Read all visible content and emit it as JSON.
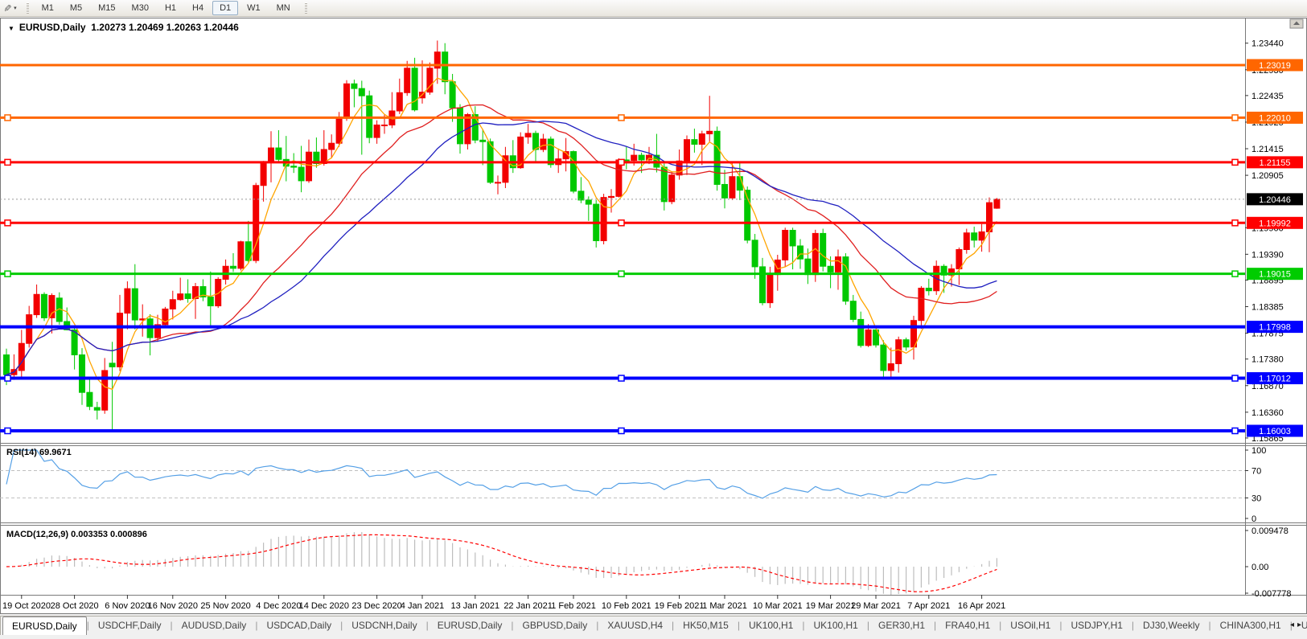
{
  "toolbar": {
    "draw_tool_icon": "✎",
    "dropdown_icon": "▾",
    "timeframes": [
      "M1",
      "M5",
      "M15",
      "M30",
      "H1",
      "H4",
      "D1",
      "W1",
      "MN"
    ],
    "active_timeframe": "D1"
  },
  "chart": {
    "dropdown_icon": "▼",
    "title": "EURUSD,Daily",
    "quote": "1.20273 1.20469 1.20263 1.20446"
  },
  "rsi_panel": {
    "label": "RSI(14) 69.9671"
  },
  "macd_panel": {
    "label": "MACD(12,26,9) 0.003353 0.000896"
  },
  "chart_data": {
    "type": "candlestick",
    "symbol": "EURUSD",
    "timeframe": "Daily",
    "colors": {
      "bull": "#F20000",
      "bear": "#00C800",
      "ma_fast": "#FFA500",
      "ma_mid": "#E02020",
      "ma_slow": "#2020C0",
      "rsi": "#55A0E6",
      "macd_hist": "#BDBDBD",
      "macd_signal": "#FF0000",
      "current_badge": "#000000",
      "axis_text": "#000000"
    },
    "ma_periods": {
      "fast": 5,
      "mid": 20,
      "slow": 30
    },
    "current_price": {
      "value": 1.20446,
      "label": "1.20446"
    },
    "price_axis_ticks": [
      "1.23440",
      "1.22930",
      "1.22435",
      "1.21925",
      "1.21415",
      "1.20905",
      "1.19900",
      "1.19390",
      "1.18895",
      "1.18385",
      "1.17875",
      "1.17380",
      "1.16870",
      "1.16360",
      "1.15865"
    ],
    "hlines": [
      {
        "price": 1.23019,
        "label": "1.23019",
        "color": "#FF6600",
        "width": 3,
        "handles": false
      },
      {
        "price": 1.2201,
        "label": "1.22010",
        "color": "#FF6600",
        "width": 3,
        "handles": true
      },
      {
        "price": 1.21155,
        "label": "1.21155",
        "color": "#FF0000",
        "width": 3,
        "handles": true
      },
      {
        "price": 1.19992,
        "label": "1.19992",
        "color": "#FF0000",
        "width": 3,
        "handles": true
      },
      {
        "price": 1.19015,
        "label": "1.19015",
        "color": "#00CC00",
        "width": 3,
        "handles": true
      },
      {
        "price": 1.17998,
        "label": "1.17998",
        "color": "#0000FF",
        "width": 4,
        "handles": false
      },
      {
        "price": 1.17012,
        "label": "1.17012",
        "color": "#0000FF",
        "width": 4,
        "handles": true
      },
      {
        "price": 1.16003,
        "label": "1.16003",
        "color": "#0000FF",
        "width": 4,
        "handles": true
      }
    ],
    "rsi_axis_ticks": [
      "100",
      "70",
      "30",
      "0"
    ],
    "rsi_levels": [
      70,
      30
    ],
    "macd_axis_ticks": [
      "0.009478",
      "0.00",
      "-0.007778"
    ],
    "date_labels": [
      [
        "19 Oct 2020",
        2
      ],
      [
        "28 Oct 2020",
        9
      ],
      [
        "6 Nov 2020",
        16
      ],
      [
        "16 Nov 2020",
        22
      ],
      [
        "25 Nov 2020",
        29
      ],
      [
        "4 Dec 2020",
        36
      ],
      [
        "14 Dec 2020",
        42
      ],
      [
        "23 Dec 2020",
        49
      ],
      [
        "4 Jan 2021",
        55
      ],
      [
        "13 Jan 2021",
        62
      ],
      [
        "22 Jan 2021",
        69
      ],
      [
        "1 Feb 2021",
        75
      ],
      [
        "10 Feb 2021",
        82
      ],
      [
        "19 Feb 2021",
        89
      ],
      [
        "1 Mar 2021",
        95
      ],
      [
        "10 Mar 2021",
        102
      ],
      [
        "19 Mar 2021",
        109
      ],
      [
        "29 Mar 2021",
        115
      ],
      [
        "7 Apr 2021",
        122
      ],
      [
        "16 Apr 2021",
        129
      ]
    ],
    "ohlc": [
      [
        1.1746,
        1.1758,
        1.1688,
        1.1708
      ],
      [
        1.1708,
        1.1747,
        1.1698,
        1.1718
      ],
      [
        1.1716,
        1.1794,
        1.1703,
        1.1768
      ],
      [
        1.1768,
        1.184,
        1.176,
        1.1823
      ],
      [
        1.1823,
        1.1881,
        1.1817,
        1.1862
      ],
      [
        1.1862,
        1.1866,
        1.1811,
        1.1817
      ],
      [
        1.1817,
        1.1864,
        1.1787,
        1.186
      ],
      [
        1.1855,
        1.1866,
        1.1804,
        1.181
      ],
      [
        1.181,
        1.1837,
        1.1793,
        1.1794
      ],
      [
        1.1794,
        1.18,
        1.1718,
        1.1746
      ],
      [
        1.1746,
        1.1759,
        1.165,
        1.1674
      ],
      [
        1.1674,
        1.1704,
        1.164,
        1.1647
      ],
      [
        1.1645,
        1.1656,
        1.1622,
        1.164
      ],
      [
        1.164,
        1.174,
        1.1633,
        1.1716
      ],
      [
        1.173,
        1.1771,
        1.1603,
        1.1723
      ],
      [
        1.1723,
        1.1861,
        1.1715,
        1.1826
      ],
      [
        1.1826,
        1.1887,
        1.1795,
        1.1873
      ],
      [
        1.1873,
        1.192,
        1.1795,
        1.1813
      ],
      [
        1.1813,
        1.1843,
        1.1781,
        1.1815
      ],
      [
        1.1815,
        1.1824,
        1.1745,
        1.1779
      ],
      [
        1.1779,
        1.1823,
        1.1771,
        1.1804
      ],
      [
        1.1804,
        1.1838,
        1.1799,
        1.1834
      ],
      [
        1.1834,
        1.1869,
        1.1814,
        1.1852
      ],
      [
        1.1852,
        1.1894,
        1.185,
        1.1863
      ],
      [
        1.1863,
        1.1891,
        1.1846,
        1.1854
      ],
      [
        1.1854,
        1.1884,
        1.1815,
        1.1877
      ],
      [
        1.1877,
        1.1891,
        1.1849,
        1.1857
      ],
      [
        1.1857,
        1.1906,
        1.18,
        1.184
      ],
      [
        1.184,
        1.1895,
        1.1836,
        1.1891
      ],
      [
        1.1891,
        1.1929,
        1.1881,
        1.1916
      ],
      [
        1.1916,
        1.1941,
        1.1905,
        1.1912
      ],
      [
        1.1912,
        1.1965,
        1.1908,
        1.1963
      ],
      [
        1.1963,
        1.2003,
        1.1923,
        1.1927
      ],
      [
        1.1927,
        1.2076,
        1.1922,
        1.2071
      ],
      [
        1.2071,
        1.2118,
        1.204,
        1.2115
      ],
      [
        1.2115,
        1.2175,
        1.2077,
        1.2143
      ],
      [
        1.2143,
        1.2177,
        1.2115,
        1.2121
      ],
      [
        1.2121,
        1.2166,
        1.2079,
        1.2108
      ],
      [
        1.2108,
        1.2133,
        1.2095,
        1.2106
      ],
      [
        1.2106,
        1.2147,
        1.2058,
        1.208
      ],
      [
        1.208,
        1.2159,
        1.2076,
        1.2135
      ],
      [
        1.2135,
        1.2163,
        1.2105,
        1.2113
      ],
      [
        1.2113,
        1.2177,
        1.2109,
        1.214
      ],
      [
        1.214,
        1.2169,
        1.2123,
        1.2152
      ],
      [
        1.2152,
        1.2212,
        1.2145,
        1.22
      ],
      [
        1.22,
        1.2273,
        1.2195,
        1.2266
      ],
      [
        1.2266,
        1.2274,
        1.2221,
        1.2257
      ],
      [
        1.2257,
        1.2272,
        1.213,
        1.2243
      ],
      [
        1.2243,
        1.2253,
        1.2152,
        1.2163
      ],
      [
        1.2163,
        1.2196,
        1.2151,
        1.2187
      ],
      [
        1.2187,
        1.2208,
        1.217,
        1.2187
      ],
      [
        1.2187,
        1.225,
        1.2181,
        1.2214
      ],
      [
        1.2214,
        1.2276,
        1.2208,
        1.2249
      ],
      [
        1.2249,
        1.231,
        1.2243,
        1.2296
      ],
      [
        1.2296,
        1.2316,
        1.2213,
        1.2216
      ],
      [
        1.2239,
        1.2311,
        1.2228,
        1.225
      ],
      [
        1.225,
        1.2307,
        1.2245,
        1.2296
      ],
      [
        1.2296,
        1.2349,
        1.2266,
        1.2327
      ],
      [
        1.2327,
        1.2344,
        1.2246,
        1.227
      ],
      [
        1.227,
        1.2285,
        1.2193,
        1.222
      ],
      [
        1.222,
        1.2227,
        1.2132,
        1.2151
      ],
      [
        1.2151,
        1.221,
        1.214,
        1.2207
      ],
      [
        1.2207,
        1.2223,
        1.2152,
        1.2158
      ],
      [
        1.2158,
        1.2179,
        1.211,
        1.2155
      ],
      [
        1.2155,
        1.2161,
        1.2074,
        1.2077
      ],
      [
        1.2077,
        1.209,
        1.2054,
        1.2077
      ],
      [
        1.2077,
        1.2145,
        1.2066,
        1.2128
      ],
      [
        1.2128,
        1.2158,
        1.2095,
        1.2105
      ],
      [
        1.2105,
        1.2173,
        1.2103,
        1.2164
      ],
      [
        1.2164,
        1.2189,
        1.2151,
        1.2171
      ],
      [
        1.2171,
        1.2176,
        1.2116,
        1.214
      ],
      [
        1.214,
        1.217,
        1.2135,
        1.216
      ],
      [
        1.216,
        1.2165,
        1.2105,
        1.2111
      ],
      [
        1.2111,
        1.2142,
        1.2095,
        1.2122
      ],
      [
        1.2122,
        1.2162,
        1.2098,
        1.2136
      ],
      [
        1.2136,
        1.2138,
        1.2056,
        1.206
      ],
      [
        1.206,
        1.2087,
        1.2037,
        1.2043
      ],
      [
        1.2043,
        1.205,
        1.2003,
        1.2035
      ],
      [
        1.2035,
        1.2043,
        1.1952,
        1.1965
      ],
      [
        1.1965,
        1.2055,
        1.1958,
        1.2048
      ],
      [
        1.2048,
        1.2064,
        1.2019,
        1.205
      ],
      [
        1.205,
        1.2123,
        1.2048,
        1.212
      ],
      [
        1.212,
        1.2145,
        1.2102,
        1.2119
      ],
      [
        1.2119,
        1.2151,
        1.2109,
        1.2129
      ],
      [
        1.2129,
        1.2134,
        1.2095,
        1.212
      ],
      [
        1.212,
        1.2145,
        1.2112,
        1.2129
      ],
      [
        1.2129,
        1.217,
        1.2096,
        1.2106
      ],
      [
        1.2106,
        1.2113,
        1.2023,
        1.204
      ],
      [
        1.204,
        1.2098,
        1.2035,
        1.2091
      ],
      [
        1.2091,
        1.214,
        1.2082,
        1.2118
      ],
      [
        1.2118,
        1.2167,
        1.2091,
        1.2159
      ],
      [
        1.2159,
        1.218,
        1.2134,
        1.215
      ],
      [
        1.215,
        1.2176,
        1.211,
        1.217
      ],
      [
        1.217,
        1.2243,
        1.2155,
        1.2175
      ],
      [
        1.2175,
        1.2184,
        1.2061,
        1.2073
      ],
      [
        1.2073,
        1.2101,
        1.2027,
        1.2047
      ],
      [
        1.2047,
        1.2113,
        1.2043,
        1.2088
      ],
      [
        1.2088,
        1.2114,
        1.2043,
        1.2062
      ],
      [
        1.2062,
        1.2069,
        1.196,
        1.1966
      ],
      [
        1.1966,
        1.1978,
        1.1892,
        1.1915
      ],
      [
        1.1915,
        1.1932,
        1.1841,
        1.1846
      ],
      [
        1.1846,
        1.1915,
        1.1836,
        1.19
      ],
      [
        1.19,
        1.1938,
        1.1869,
        1.1928
      ],
      [
        1.1928,
        1.199,
        1.1915,
        1.1985
      ],
      [
        1.1985,
        1.199,
        1.191,
        1.1955
      ],
      [
        1.1955,
        1.1968,
        1.1911,
        1.193
      ],
      [
        1.193,
        1.195,
        1.1882,
        1.19
      ],
      [
        1.19,
        1.1986,
        1.1886,
        1.1979
      ],
      [
        1.1979,
        1.1988,
        1.1906,
        1.1916
      ],
      [
        1.1916,
        1.1935,
        1.1874,
        1.1905
      ],
      [
        1.1905,
        1.1948,
        1.1871,
        1.1934
      ],
      [
        1.1934,
        1.1941,
        1.1842,
        1.1849
      ],
      [
        1.1849,
        1.1861,
        1.1809,
        1.1814
      ],
      [
        1.1814,
        1.1829,
        1.176,
        1.1764
      ],
      [
        1.1764,
        1.1805,
        1.1761,
        1.1794
      ],
      [
        1.1794,
        1.1795,
        1.176,
        1.1765
      ],
      [
        1.1765,
        1.1774,
        1.1704,
        1.1716
      ],
      [
        1.1716,
        1.176,
        1.17,
        1.1729
      ],
      [
        1.1729,
        1.1781,
        1.1712,
        1.1775
      ],
      [
        1.1775,
        1.1779,
        1.1754,
        1.1761
      ],
      [
        1.1761,
        1.1821,
        1.1737,
        1.1812
      ],
      [
        1.1812,
        1.1878,
        1.1796,
        1.1874
      ],
      [
        1.1874,
        1.1892,
        1.186,
        1.1869
      ],
      [
        1.1869,
        1.1927,
        1.1861,
        1.1916
      ],
      [
        1.1916,
        1.192,
        1.1865,
        1.1899
      ],
      [
        1.1899,
        1.192,
        1.1877,
        1.1911
      ],
      [
        1.1911,
        1.1952,
        1.188,
        1.1948
      ],
      [
        1.1948,
        1.1988,
        1.194,
        1.198
      ],
      [
        1.198,
        1.1992,
        1.1952,
        1.1966
      ],
      [
        1.1966,
        1.1997,
        1.1944,
        1.1982
      ],
      [
        1.1982,
        1.2048,
        1.1943,
        1.2038
      ],
      [
        1.20273,
        1.20469,
        1.20263,
        1.20446
      ]
    ]
  },
  "tabs": {
    "items": [
      "EURUSD,Daily",
      "USDCHF,Daily",
      "AUDUSD,Daily",
      "USDCAD,Daily",
      "USDCNH,Daily",
      "EURUSD,Daily",
      "GBPUSD,Daily",
      "XAUUSD,H4",
      "HK50,M15",
      "UK100,H1",
      "UK100,H1",
      "GER30,H1",
      "FRA40,H1",
      "USOil,H1",
      "USDJPY,H1",
      "DJ30,Weekly",
      "CHINA300,H1",
      "U"
    ],
    "active_index": 0,
    "scroll_left_icon": "◂",
    "scroll_right_icon": "▸"
  }
}
